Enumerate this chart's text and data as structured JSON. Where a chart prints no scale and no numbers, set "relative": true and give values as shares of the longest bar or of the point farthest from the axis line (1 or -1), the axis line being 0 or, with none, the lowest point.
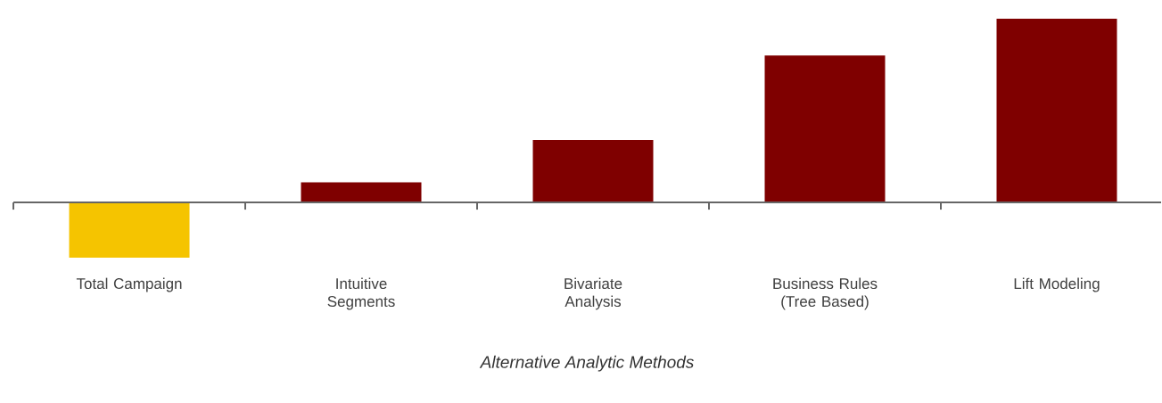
{
  "chart_data": {
    "type": "bar",
    "relative": true,
    "xlabel": "Alternative Analytic Methods",
    "categories": [
      "Total Campaign",
      "Intuitive Segments",
      "Bivariate Analysis",
      "Business Rules (Tree Based)",
      "Lift Modeling"
    ],
    "values": [
      -0.3,
      0.11,
      0.34,
      0.8,
      1
    ],
    "colors": [
      "#f5c400",
      "#7f0000",
      "#7f0000",
      "#7f0000",
      "#7f0000"
    ]
  }
}
